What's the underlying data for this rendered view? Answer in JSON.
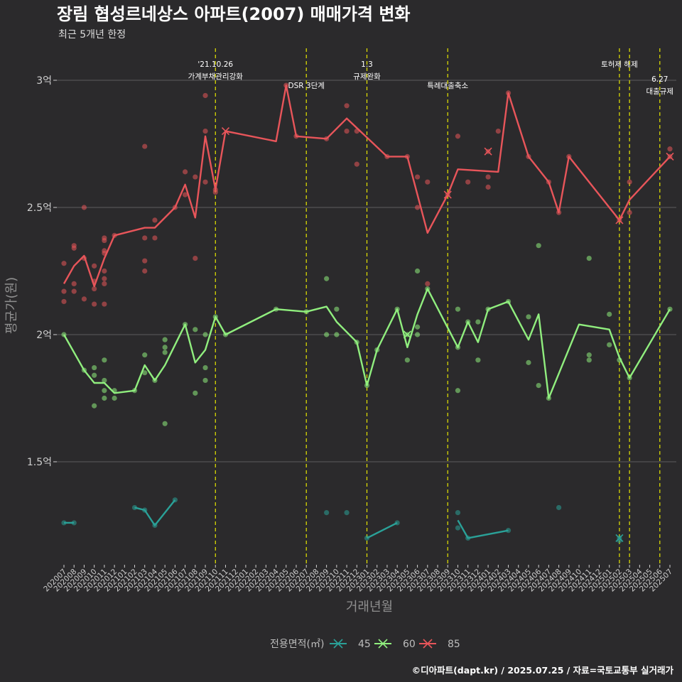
{
  "chart_data": {
    "type": "line",
    "title": "장림 협성르네상스 아파트(2007) 매매가격 변화",
    "subtitle": "최근 5개년 한정",
    "xlabel": "거래년월",
    "ylabel": "평균가(원)",
    "caption": "©디아파트(dapt.kr) / 2025.07.25 / 자료=국토교통부 실거래가",
    "x_categories": [
      "202007",
      "202008",
      "202009",
      "202010",
      "202011",
      "202012",
      "202101",
      "202102",
      "202103",
      "202104",
      "202105",
      "202106",
      "202107",
      "202108",
      "202109",
      "202110",
      "202111",
      "202112",
      "202201",
      "202202",
      "202203",
      "202204",
      "202205",
      "202206",
      "202207",
      "202208",
      "202209",
      "202210",
      "202211",
      "202212",
      "202301",
      "202302",
      "202303",
      "202304",
      "202305",
      "202306",
      "202307",
      "202308",
      "202309",
      "202310",
      "202311",
      "202312",
      "202401",
      "202402",
      "202403",
      "202404",
      "202405",
      "202406",
      "202407",
      "202408",
      "202409",
      "202410",
      "202411",
      "202412",
      "202501",
      "202502",
      "202503",
      "202504",
      "202505",
      "202506",
      "202507"
    ],
    "y_ticks": [
      {
        "value": 1.5,
        "label": "1.5억"
      },
      {
        "value": 2.0,
        "label": "2억"
      },
      {
        "value": 2.5,
        "label": "2.5억"
      },
      {
        "value": 3.0,
        "label": "3억"
      }
    ],
    "ylim": [
      1.1,
      3.12
    ],
    "grid": true,
    "legend": {
      "title": "전용면적(㎡)",
      "position": "bottom"
    },
    "series": [
      {
        "name": "45",
        "color": "#2aa198",
        "segments": [
          [
            [
              "202007",
              1.26
            ],
            [
              "202008",
              1.26
            ]
          ],
          [
            [
              "202102",
              1.32
            ],
            [
              "202103",
              1.31
            ],
            [
              "202104",
              1.25
            ],
            [
              "202106",
              1.35
            ]
          ],
          [
            [
              "202301",
              1.2
            ],
            [
              "202304",
              1.26
            ]
          ],
          [
            [
              "202310",
              1.27
            ],
            [
              "202311",
              1.2
            ],
            [
              "202403",
              1.23
            ]
          ]
        ],
        "points": [
          [
            "202007",
            1.26
          ],
          [
            "202008",
            1.26
          ],
          [
            "202102",
            1.32
          ],
          [
            "202103",
            1.31
          ],
          [
            "202104",
            1.25
          ],
          [
            "202106",
            1.35
          ],
          [
            "202209",
            1.3
          ],
          [
            "202211",
            1.3
          ],
          [
            "202301",
            1.2
          ],
          [
            "202304",
            1.26
          ],
          [
            "202310",
            1.3
          ],
          [
            "202310",
            1.24
          ],
          [
            "202311",
            1.2
          ],
          [
            "202403",
            1.23
          ],
          [
            "202408",
            1.32
          ],
          [
            "202502",
            1.2
          ],
          [
            "202502",
            1.19
          ]
        ],
        "crosses": [
          [
            "202502",
            1.2
          ]
        ]
      },
      {
        "name": "60",
        "color": "#90ee7e",
        "segments": [
          [
            [
              "202007",
              2.0
            ],
            [
              "202009",
              1.86
            ],
            [
              "202010",
              1.81
            ],
            [
              "202011",
              1.81
            ],
            [
              "202012",
              1.77
            ],
            [
              "202102",
              1.78
            ],
            [
              "202103",
              1.88
            ],
            [
              "202104",
              1.82
            ],
            [
              "202105",
              1.88
            ],
            [
              "202107",
              2.04
            ],
            [
              "202108",
              1.89
            ],
            [
              "202109",
              1.94
            ],
            [
              "202110",
              2.07
            ],
            [
              "202111",
              2.0
            ],
            [
              "202204",
              2.1
            ],
            [
              "202207",
              2.09
            ],
            [
              "202209",
              2.11
            ],
            [
              "202210",
              2.05
            ],
            [
              "202212",
              1.97
            ],
            [
              "202301",
              1.8
            ],
            [
              "202302",
              1.94
            ],
            [
              "202304",
              2.1
            ],
            [
              "202305",
              1.95
            ],
            [
              "202306",
              2.08
            ],
            [
              "202307",
              2.18
            ],
            [
              "202310",
              1.95
            ],
            [
              "202311",
              2.05
            ],
            [
              "202312",
              1.97
            ],
            [
              "202401",
              2.1
            ],
            [
              "202403",
              2.13
            ],
            [
              "202405",
              1.98
            ],
            [
              "202406",
              2.08
            ],
            [
              "202407",
              1.75
            ],
            [
              "202410",
              2.04
            ],
            [
              "202501",
              2.02
            ],
            [
              "202502",
              1.91
            ],
            [
              "202503",
              1.83
            ],
            [
              "202507",
              2.1
            ]
          ]
        ],
        "points": [
          [
            "202007",
            2.0
          ],
          [
            "202009",
            1.86
          ],
          [
            "202010",
            1.87
          ],
          [
            "202010",
            1.84
          ],
          [
            "202010",
            1.72
          ],
          [
            "202011",
            1.9
          ],
          [
            "202011",
            1.82
          ],
          [
            "202011",
            1.78
          ],
          [
            "202011",
            1.75
          ],
          [
            "202012",
            1.78
          ],
          [
            "202012",
            1.75
          ],
          [
            "202102",
            1.78
          ],
          [
            "202103",
            1.92
          ],
          [
            "202103",
            1.85
          ],
          [
            "202104",
            1.82
          ],
          [
            "202105",
            1.98
          ],
          [
            "202105",
            1.95
          ],
          [
            "202105",
            1.93
          ],
          [
            "202105",
            1.65
          ],
          [
            "202107",
            2.04
          ],
          [
            "202108",
            2.02
          ],
          [
            "202108",
            1.77
          ],
          [
            "202109",
            2.0
          ],
          [
            "202109",
            1.87
          ],
          [
            "202109",
            1.82
          ],
          [
            "202110",
            2.07
          ],
          [
            "202111",
            2.0
          ],
          [
            "202204",
            2.1
          ],
          [
            "202207",
            2.09
          ],
          [
            "202209",
            2.22
          ],
          [
            "202209",
            2.0
          ],
          [
            "202210",
            2.1
          ],
          [
            "202210",
            2.0
          ],
          [
            "202212",
            1.97
          ],
          [
            "202301",
            1.8
          ],
          [
            "202302",
            1.94
          ],
          [
            "202304",
            2.1
          ],
          [
            "202305",
            2.0
          ],
          [
            "202305",
            1.9
          ],
          [
            "202306",
            2.25
          ],
          [
            "202306",
            2.03
          ],
          [
            "202306",
            2.0
          ],
          [
            "202307",
            2.18
          ],
          [
            "202310",
            2.1
          ],
          [
            "202310",
            1.95
          ],
          [
            "202310",
            1.78
          ],
          [
            "202311",
            2.05
          ],
          [
            "202312",
            2.05
          ],
          [
            "202312",
            1.9
          ],
          [
            "202401",
            2.1
          ],
          [
            "202403",
            2.13
          ],
          [
            "202405",
            2.07
          ],
          [
            "202405",
            1.89
          ],
          [
            "202406",
            2.35
          ],
          [
            "202406",
            1.8
          ],
          [
            "202407",
            1.75
          ],
          [
            "202411",
            2.3
          ],
          [
            "202411",
            1.92
          ],
          [
            "202411",
            1.9
          ],
          [
            "202501",
            2.08
          ],
          [
            "202501",
            1.96
          ],
          [
            "202502",
            1.9
          ],
          [
            "202503",
            1.83
          ],
          [
            "202507",
            2.1
          ]
        ],
        "crosses": [
          [
            "202305",
            2.0
          ]
        ]
      },
      {
        "name": "85",
        "color": "#e8555a",
        "segments": [
          [
            [
              "202007",
              2.2
            ],
            [
              "202008",
              2.27
            ],
            [
              "202009",
              2.31
            ],
            [
              "202010",
              2.19
            ],
            [
              "202011",
              2.3
            ],
            [
              "202012",
              2.39
            ],
            [
              "202103",
              2.42
            ],
            [
              "202104",
              2.42
            ],
            [
              "202106",
              2.5
            ],
            [
              "202107",
              2.59
            ],
            [
              "202108",
              2.46
            ],
            [
              "202109",
              2.78
            ],
            [
              "202110",
              2.57
            ],
            [
              "202111",
              2.8
            ],
            [
              "202204",
              2.76
            ],
            [
              "202205",
              2.98
            ],
            [
              "202206",
              2.78
            ],
            [
              "202209",
              2.77
            ],
            [
              "202211",
              2.85
            ],
            [
              "202303",
              2.7
            ],
            [
              "202305",
              2.7
            ],
            [
              "202307",
              2.4
            ],
            [
              "202309",
              2.55
            ],
            [
              "202310",
              2.65
            ],
            [
              "202402",
              2.64
            ],
            [
              "202403",
              2.95
            ],
            [
              "202405",
              2.7
            ],
            [
              "202407",
              2.6
            ],
            [
              "202408",
              2.48
            ],
            [
              "202409",
              2.7
            ],
            [
              "202502",
              2.45
            ],
            [
              "202503",
              2.53
            ],
            [
              "202507",
              2.7
            ]
          ]
        ],
        "points": [
          [
            "202007",
            2.28
          ],
          [
            "202007",
            2.17
          ],
          [
            "202007",
            2.13
          ],
          [
            "202008",
            2.35
          ],
          [
            "202008",
            2.34
          ],
          [
            "202008",
            2.2
          ],
          [
            "202008",
            2.17
          ],
          [
            "202009",
            2.5
          ],
          [
            "202009",
            2.3
          ],
          [
            "202009",
            2.14
          ],
          [
            "202010",
            2.27
          ],
          [
            "202010",
            2.21
          ],
          [
            "202010",
            2.18
          ],
          [
            "202010",
            2.12
          ],
          [
            "202011",
            2.38
          ],
          [
            "202011",
            2.37
          ],
          [
            "202011",
            2.33
          ],
          [
            "202011",
            2.32
          ],
          [
            "202011",
            2.25
          ],
          [
            "202011",
            2.22
          ],
          [
            "202011",
            2.2
          ],
          [
            "202011",
            2.12
          ],
          [
            "202012",
            2.39
          ],
          [
            "202103",
            2.74
          ],
          [
            "202103",
            2.38
          ],
          [
            "202103",
            2.29
          ],
          [
            "202103",
            2.25
          ],
          [
            "202104",
            2.45
          ],
          [
            "202104",
            2.38
          ],
          [
            "202106",
            2.5
          ],
          [
            "202107",
            2.64
          ],
          [
            "202107",
            2.55
          ],
          [
            "202108",
            2.62
          ],
          [
            "202108",
            2.3
          ],
          [
            "202109",
            2.94
          ],
          [
            "202109",
            2.8
          ],
          [
            "202109",
            2.6
          ],
          [
            "202110",
            2.57
          ],
          [
            "202110",
            2.56
          ],
          [
            "202205",
            2.98
          ],
          [
            "202206",
            2.78
          ],
          [
            "202209",
            2.77
          ],
          [
            "202211",
            2.9
          ],
          [
            "202211",
            2.8
          ],
          [
            "202212",
            2.8
          ],
          [
            "202212",
            2.67
          ],
          [
            "202303",
            2.7
          ],
          [
            "202305",
            2.7
          ],
          [
            "202306",
            2.62
          ],
          [
            "202306",
            2.5
          ],
          [
            "202307",
            2.6
          ],
          [
            "202307",
            2.2
          ],
          [
            "202309",
            2.55
          ],
          [
            "202310",
            2.78
          ],
          [
            "202311",
            2.6
          ],
          [
            "202401",
            2.72
          ],
          [
            "202401",
            2.62
          ],
          [
            "202401",
            2.58
          ],
          [
            "202402",
            2.8
          ],
          [
            "202403",
            2.95
          ],
          [
            "202405",
            2.7
          ],
          [
            "202407",
            2.6
          ],
          [
            "202408",
            2.48
          ],
          [
            "202409",
            2.7
          ],
          [
            "202502",
            2.45
          ],
          [
            "202503",
            2.6
          ],
          [
            "202503",
            2.48
          ],
          [
            "202507",
            2.73
          ],
          [
            "202507",
            2.7
          ]
        ],
        "crosses": [
          [
            "202111",
            2.8
          ],
          [
            "202309",
            2.55
          ],
          [
            "202401",
            2.72
          ],
          [
            "202502",
            2.45
          ],
          [
            "202507",
            2.7
          ]
        ]
      }
    ],
    "annotations": [
      {
        "x": "202110",
        "lines": [
          "'21.10.26",
          "가계부채관리강화"
        ],
        "align": "top"
      },
      {
        "x": "202207",
        "lines": [
          "DSR 3단계"
        ],
        "align": "lower"
      },
      {
        "x": "202301",
        "lines": [
          "1.3",
          "규제완화"
        ],
        "align": "top"
      },
      {
        "x": "202309",
        "lines": [
          "특례대출축소"
        ],
        "align": "lower"
      },
      {
        "x": "202502",
        "lines": [
          "토허제 해제"
        ],
        "align": "top"
      },
      {
        "x": "202503",
        "lines": [],
        "align": "top"
      },
      {
        "x": "202506",
        "lines": [
          "6.27",
          "대출규제"
        ],
        "align": "lowest"
      }
    ]
  }
}
